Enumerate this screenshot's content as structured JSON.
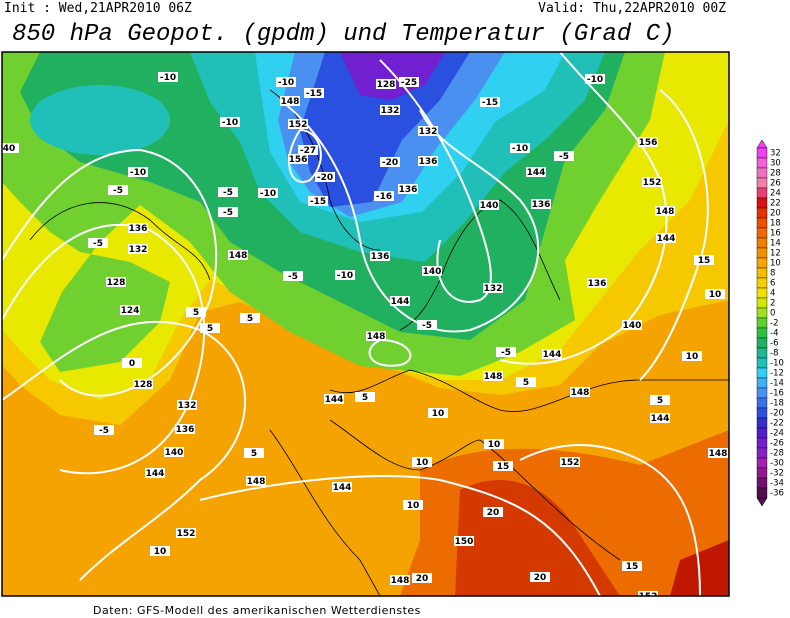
{
  "header": {
    "init": "Init : Wed,21APR2010 06Z",
    "valid": "Valid: Thu,22APR2010 00Z",
    "title": "850 hPa Geopot. (gpdm) und Temperatur (Grad C)"
  },
  "map": {
    "contour_labels": [
      "-10",
      "-10",
      "-10",
      "-5",
      "-5",
      "136",
      "132",
      "128",
      "124",
      "0",
      "128",
      "132",
      "136",
      "140",
      "144",
      "148",
      "152",
      "10",
      "5",
      "5",
      "5",
      "144",
      "5",
      "144",
      "148",
      "-5",
      "-10",
      "-10",
      "-5",
      "-5",
      "152",
      "156",
      "-15",
      "-20",
      "-27",
      "148",
      "-15",
      "-10",
      "128",
      "-25",
      "132",
      "132",
      "-20",
      "136",
      "-16",
      "136",
      "136",
      "140",
      "144",
      "148",
      "-5",
      "132",
      "140",
      "144",
      "136",
      "-15",
      "-10",
      "-5",
      "-10",
      "156",
      "152",
      "148",
      "144",
      "136",
      "140",
      "144",
      "-5",
      "148",
      "5",
      "148",
      "15",
      "10",
      "10",
      "5",
      "144",
      "148",
      "10",
      "10",
      "10",
      "15",
      "152",
      "10",
      "20",
      "150",
      "20",
      "15",
      "148",
      "20",
      "152",
      "40",
      "-5",
      "5"
    ]
  },
  "colorbar": {
    "labels": [
      "32",
      "30",
      "28",
      "26",
      "24",
      "22",
      "20",
      "18",
      "16",
      "14",
      "12",
      "10",
      "8",
      "6",
      "4",
      "2",
      "0",
      "-2",
      "-4",
      "-6",
      "-8",
      "-10",
      "-12",
      "-14",
      "-16",
      "-18",
      "-20",
      "-22",
      "-24",
      "-26",
      "-28",
      "-30",
      "-32",
      "-34",
      "-36"
    ]
  },
  "footer": "Daten: GFS-Modell des amerikanischen Wetterdienstes"
}
